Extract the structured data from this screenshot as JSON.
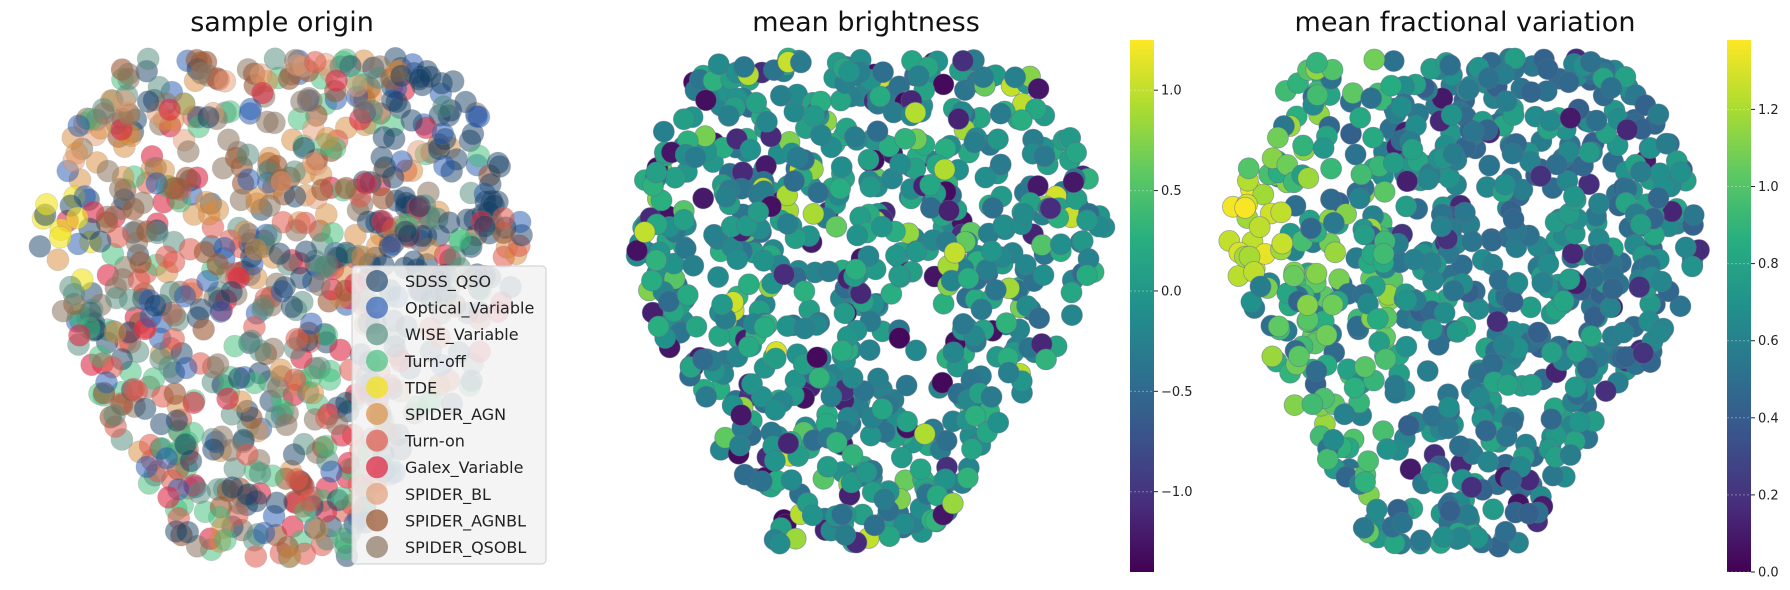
{
  "chart_data": [
    {
      "type": "scatter",
      "title": "sample origin",
      "legend_position": "lower-right",
      "series": [
        {
          "name": "SDSS_QSO",
          "color": "#163f66",
          "alpha": 0.5
        },
        {
          "name": "Optical_Variable",
          "color": "#1f55b0",
          "alpha": 0.5
        },
        {
          "name": "WISE_Variable",
          "color": "#4d8a7a",
          "alpha": 0.5
        },
        {
          "name": "Turn-off",
          "color": "#3bbd75",
          "alpha": 0.5
        },
        {
          "name": "TDE",
          "color": "#f2e21a",
          "alpha": 0.6
        },
        {
          "name": "SPIDER_AGN",
          "color": "#d98a3a",
          "alpha": 0.5
        },
        {
          "name": "Turn-on",
          "color": "#e0584a",
          "alpha": 0.55
        },
        {
          "name": "Galex_Variable",
          "color": "#dd2a44",
          "alpha": 0.6
        },
        {
          "name": "SPIDER_BL",
          "color": "#e39a72",
          "alpha": 0.5
        },
        {
          "name": "SPIDER_AGNBL",
          "color": "#9c5a36",
          "alpha": 0.6
        },
        {
          "name": "SPIDER_QSOBL",
          "color": "#8a7560",
          "alpha": 0.55
        }
      ]
    },
    {
      "type": "scatter",
      "title": "mean brightness",
      "colormap": "viridis",
      "colorbar": {
        "min": -1.4,
        "max": 1.25,
        "ticks": [
          1.0,
          0.5,
          0.0,
          -0.5,
          -1.0
        ],
        "tick_labels": [
          "1.0",
          "0.5",
          "0.0",
          "−0.5",
          "−1.0"
        ]
      }
    },
    {
      "type": "scatter",
      "title": "mean fractional variation",
      "colormap": "viridis",
      "colorbar": {
        "min": 0.0,
        "max": 1.38,
        "ticks": [
          1.2,
          1.0,
          0.8,
          0.6,
          0.4,
          0.2,
          0.0
        ],
        "tick_labels": [
          "1.2",
          "1.0",
          "0.8",
          "0.6",
          "0.4",
          "0.2",
          "0.0"
        ]
      }
    }
  ]
}
